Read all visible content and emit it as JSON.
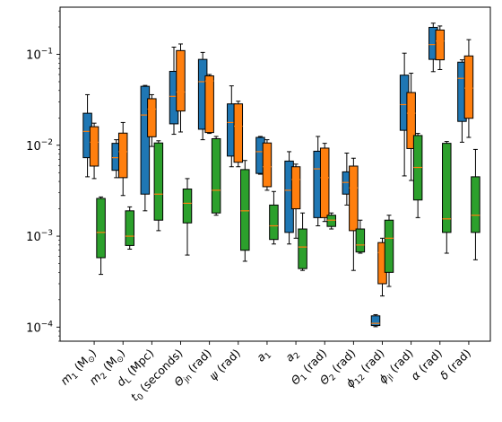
{
  "chart_data": {
    "type": "boxplot",
    "title": "",
    "xlabel": "",
    "ylabel": "",
    "yscale": "log",
    "ylim": [
      7e-05,
      0.33
    ],
    "grid": false,
    "legend": "none",
    "y_ticks": [
      {
        "value": 0.0001,
        "base": "10",
        "exp": "−4"
      },
      {
        "value": 0.001,
        "base": "10",
        "exp": "−3"
      },
      {
        "value": 0.01,
        "base": "10",
        "exp": "−2"
      },
      {
        "value": 0.1,
        "base": "10",
        "exp": "−1"
      }
    ],
    "categories": [
      {
        "main": "m",
        "sub": "1",
        "rest": " (M",
        "rest_sub": "⊙",
        "tail": ")"
      },
      {
        "main": "m",
        "sub": "2",
        "rest": " (M",
        "rest_sub": "⊙",
        "tail": ")"
      },
      {
        "main": "d",
        "sub": "L",
        "rest": " (Mpc)",
        "rest_sub": "",
        "tail": ""
      },
      {
        "main": "t",
        "sub": "0",
        "rest": " (seconds)",
        "rest_sub": "",
        "tail": ""
      },
      {
        "main": "Θ",
        "sub": "jn",
        "rest": " (rad)",
        "rest_sub": "",
        "tail": ""
      },
      {
        "main": "ψ",
        "sub": "",
        "rest": " (rad)",
        "rest_sub": "",
        "tail": ""
      },
      {
        "main": "a",
        "sub": "1",
        "rest": "",
        "rest_sub": "",
        "tail": ""
      },
      {
        "main": "a",
        "sub": "2",
        "rest": "",
        "rest_sub": "",
        "tail": ""
      },
      {
        "main": "Θ",
        "sub": "1",
        "rest": " (rad)",
        "rest_sub": "",
        "tail": ""
      },
      {
        "main": "Θ",
        "sub": "2",
        "rest": " (rad)",
        "rest_sub": "",
        "tail": ""
      },
      {
        "main": "ϕ",
        "sub": "12",
        "rest": " (rad)",
        "rest_sub": "",
        "tail": ""
      },
      {
        "main": "ϕ",
        "sub": "jl",
        "rest": " (rad)",
        "rest_sub": "",
        "tail": ""
      },
      {
        "main": "α",
        "sub": "",
        "rest": " (rad)",
        "rest_sub": "",
        "tail": ""
      },
      {
        "main": "δ",
        "sub": "",
        "rest": " (rad)",
        "rest_sub": "",
        "tail": ""
      }
    ],
    "series": [
      {
        "color": "#1f77b4",
        "boxes": [
          {
            "whislo": 0.0045,
            "q1": 0.0073,
            "med": 0.0142,
            "q3": 0.0225,
            "whishi": 0.036
          },
          {
            "whislo": 0.0044,
            "q1": 0.0053,
            "med": 0.0073,
            "q3": 0.0105,
            "whishi": 0.0115
          },
          {
            "whislo": 0.0019,
            "q1": 0.0029,
            "med": 0.0215,
            "q3": 0.0445,
            "whishi": 0.0455
          },
          {
            "whislo": 0.0132,
            "q1": 0.0172,
            "med": 0.0345,
            "q3": 0.065,
            "whishi": 0.12
          },
          {
            "whislo": 0.0115,
            "q1": 0.015,
            "med": 0.05,
            "q3": 0.088,
            "whishi": 0.105
          },
          {
            "whislo": 0.0058,
            "q1": 0.0076,
            "med": 0.0178,
            "q3": 0.0285,
            "whishi": 0.045
          },
          {
            "whislo": 0.0048,
            "q1": 0.0049,
            "med": 0.0085,
            "q3": 0.0122,
            "whishi": 0.0125
          },
          {
            "whislo": 0.00082,
            "q1": 0.0011,
            "med": 0.0032,
            "q3": 0.0067,
            "whishi": 0.0085
          },
          {
            "whislo": 0.0013,
            "q1": 0.0016,
            "med": 0.0055,
            "q3": 0.0086,
            "whishi": 0.0125
          },
          {
            "whislo": 0.0022,
            "q1": 0.0029,
            "med": 0.0039,
            "q3": 0.0051,
            "whishi": 0.0082
          },
          {
            "whislo": 0.000101,
            "q1": 0.000104,
            "med": 0.00011,
            "q3": 0.000133,
            "whishi": 0.000137
          },
          {
            "whislo": 0.0046,
            "q1": 0.0146,
            "med": 0.028,
            "q3": 0.059,
            "whishi": 0.103
          },
          {
            "whislo": 0.0645,
            "q1": 0.088,
            "med": 0.128,
            "q3": 0.198,
            "whishi": 0.22
          },
          {
            "whislo": 0.0108,
            "q1": 0.0183,
            "med": 0.0545,
            "q3": 0.082,
            "whishi": 0.087
          }
        ]
      },
      {
        "color": "#ff7f0e",
        "boxes": [
          {
            "whislo": 0.0043,
            "q1": 0.0059,
            "med": 0.0108,
            "q3": 0.016,
            "whishi": 0.0175
          },
          {
            "whislo": 0.0028,
            "q1": 0.0044,
            "med": 0.0085,
            "q3": 0.0136,
            "whishi": 0.0178
          },
          {
            "whislo": 0.0097,
            "q1": 0.0124,
            "med": 0.025,
            "q3": 0.0325,
            "whishi": 0.036
          },
          {
            "whislo": 0.014,
            "q1": 0.0238,
            "med": 0.0385,
            "q3": 0.11,
            "whishi": 0.13
          },
          {
            "whislo": 0.0135,
            "q1": 0.0138,
            "med": 0.051,
            "q3": 0.058,
            "whishi": 0.06
          },
          {
            "whislo": 0.0058,
            "q1": 0.0065,
            "med": 0.0162,
            "q3": 0.0285,
            "whishi": 0.0305
          },
          {
            "whislo": 0.0032,
            "q1": 0.0035,
            "med": 0.0058,
            "q3": 0.0106,
            "whishi": 0.0115
          },
          {
            "whislo": 0.00095,
            "q1": 0.002,
            "med": 0.0042,
            "q3": 0.0058,
            "whishi": 0.0062
          },
          {
            "whislo": 0.00145,
            "q1": 0.0016,
            "med": 0.0044,
            "q3": 0.0093,
            "whishi": 0.0105
          },
          {
            "whislo": 0.00042,
            "q1": 0.00115,
            "med": 0.0034,
            "q3": 0.0059,
            "whishi": 0.0072
          },
          {
            "whislo": 0.00022,
            "q1": 0.0003,
            "med": 0.00066,
            "q3": 0.00085,
            "whishi": 0.00095
          },
          {
            "whislo": 0.0041,
            "q1": 0.0092,
            "med": 0.0225,
            "q3": 0.038,
            "whishi": 0.062
          },
          {
            "whislo": 0.068,
            "q1": 0.087,
            "med": 0.14,
            "q3": 0.185,
            "whishi": 0.205
          },
          {
            "whislo": 0.0122,
            "q1": 0.0198,
            "med": 0.0425,
            "q3": 0.096,
            "whishi": 0.145
          }
        ]
      },
      {
        "color": "#2ca02c",
        "boxes": [
          {
            "whislo": 0.00038,
            "q1": 0.00058,
            "med": 0.0011,
            "q3": 0.0026,
            "whishi": 0.0027
          },
          {
            "whislo": 0.00072,
            "q1": 0.00079,
            "med": 0.001,
            "q3": 0.0019,
            "whishi": 0.0021
          },
          {
            "whislo": 0.00115,
            "q1": 0.0015,
            "med": 0.0029,
            "q3": 0.0106,
            "whishi": 0.0112
          },
          {
            "whislo": 0.00062,
            "q1": 0.0014,
            "med": 0.0023,
            "q3": 0.0033,
            "whishi": 0.0043
          },
          {
            "whislo": 0.0017,
            "q1": 0.0018,
            "med": 0.0032,
            "q3": 0.0118,
            "whishi": 0.0125
          },
          {
            "whislo": 0.00053,
            "q1": 0.0007,
            "med": 0.0019,
            "q3": 0.0054,
            "whishi": 0.0068
          },
          {
            "whislo": 0.00082,
            "q1": 0.00092,
            "med": 0.0013,
            "q3": 0.0022,
            "whishi": 0.0031
          },
          {
            "whislo": 0.00042,
            "q1": 0.00044,
            "med": 0.00076,
            "q3": 0.0012,
            "whishi": 0.0018
          },
          {
            "whislo": 0.0012,
            "q1": 0.00128,
            "med": 0.0015,
            "q3": 0.0017,
            "whishi": 0.0018
          },
          {
            "whislo": 0.00065,
            "q1": 0.00067,
            "med": 0.0008,
            "q3": 0.0012,
            "whishi": 0.0015
          },
          {
            "whislo": 0.00028,
            "q1": 0.0004,
            "med": 0.00095,
            "q3": 0.0015,
            "whishi": 0.0017
          },
          {
            "whislo": 0.0016,
            "q1": 0.0025,
            "med": 0.0057,
            "q3": 0.0128,
            "whishi": 0.0135
          },
          {
            "whislo": 0.00065,
            "q1": 0.0011,
            "med": 0.00155,
            "q3": 0.0105,
            "whishi": 0.011
          },
          {
            "whislo": 0.00055,
            "q1": 0.0011,
            "med": 0.0017,
            "q3": 0.0045,
            "whishi": 0.009
          }
        ]
      }
    ]
  }
}
